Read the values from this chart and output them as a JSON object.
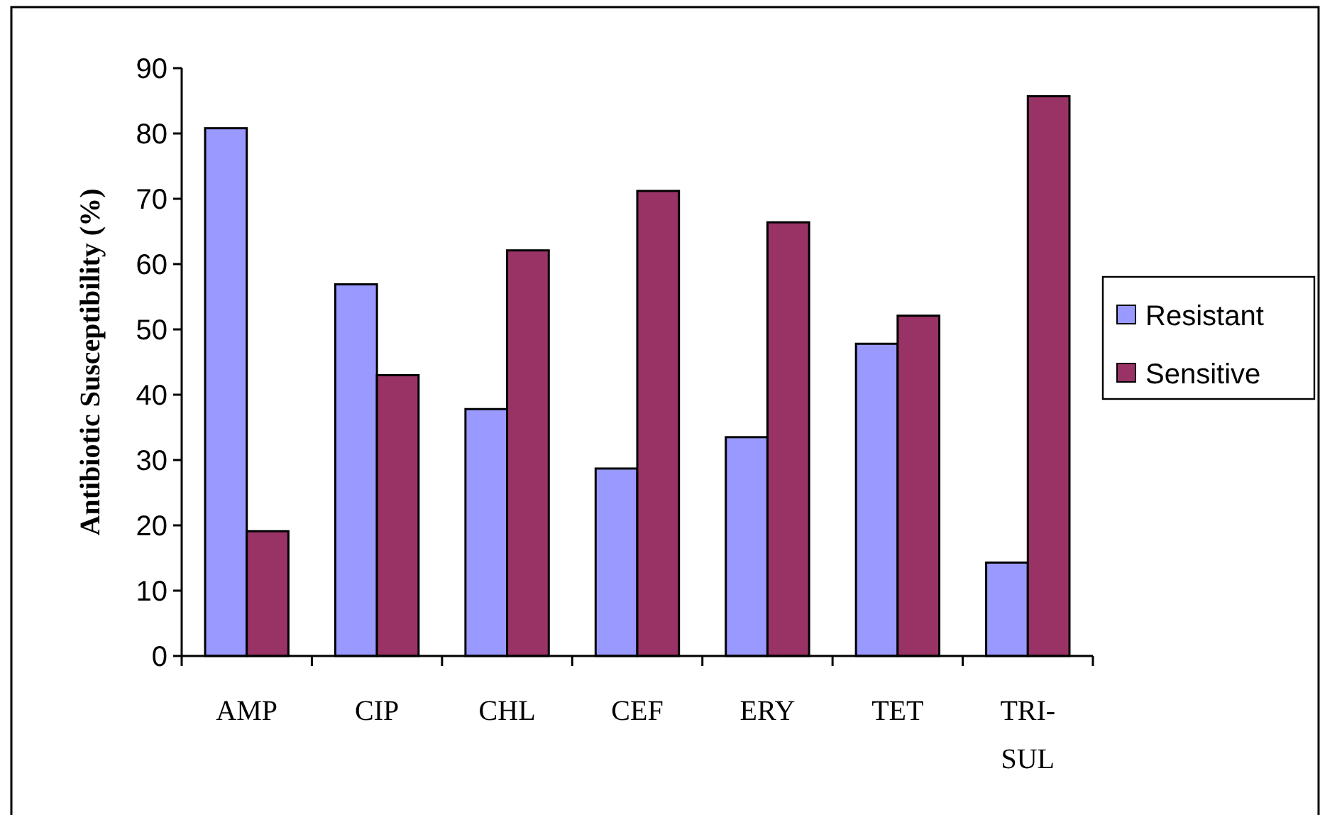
{
  "chart_data": {
    "type": "bar",
    "ylabel": "Antibiotic Susceptibility (%)",
    "categories": [
      "AMP",
      "CIP",
      "CHL",
      "CEF",
      "ERY",
      "TET",
      "TRI-SUL"
    ],
    "series": [
      {
        "name": "Resistant",
        "color": "#9999ff",
        "values": [
          80.8,
          56.9,
          37.8,
          28.7,
          33.5,
          47.8,
          14.3
        ]
      },
      {
        "name": "Sensitive",
        "color": "#993366",
        "values": [
          19.1,
          43.0,
          62.1,
          71.2,
          66.4,
          52.1,
          85.7
        ]
      }
    ],
    "ylim": [
      0,
      90
    ],
    "yticks": [
      0,
      10,
      20,
      30,
      40,
      50,
      60,
      70,
      80,
      90
    ],
    "grid": false,
    "legend": "right"
  }
}
